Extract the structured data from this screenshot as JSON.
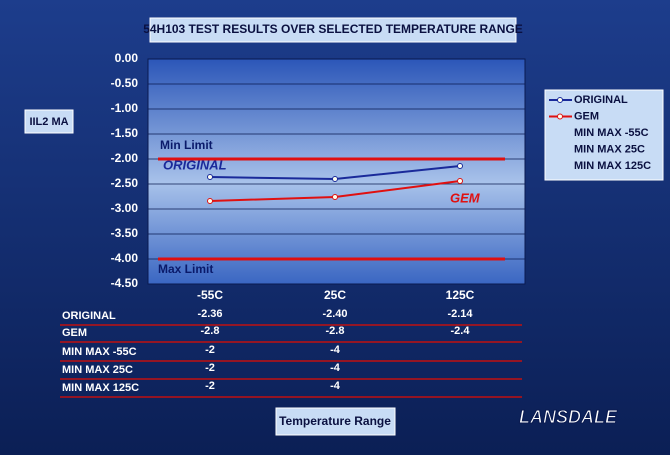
{
  "chart_data": {
    "type": "line",
    "title": "54H103 TEST RESULTS OVER SELECTED TEMPERATURE RANGE",
    "y_label": "IIL2 MA",
    "x_label": "Temperature Range",
    "categories": [
      "-55C",
      "25C",
      "125C"
    ],
    "series": [
      {
        "name": "ORIGINAL",
        "color": "#1a2a9a",
        "values": [
          -2.36,
          -2.4,
          -2.14
        ],
        "value_labels": [
          "-2.36",
          "-2.40",
          "-2.14"
        ],
        "kind": "line"
      },
      {
        "name": "GEM",
        "color": "#e01010",
        "values": [
          -2.84,
          -2.76,
          -2.44
        ],
        "value_labels": [
          "-2.8",
          "-2.8",
          "-2.4"
        ],
        "kind": "line"
      },
      {
        "name": "MIN MAX -55C",
        "color": "#e01010",
        "values": [
          -2,
          -4,
          null
        ],
        "kind": "limit"
      },
      {
        "name": "MIN MAX 25C",
        "color": "#e01010",
        "values": [
          -2,
          -4,
          null
        ],
        "kind": "limit"
      },
      {
        "name": "MIN MAX 125C",
        "color": "#e01010",
        "values": [
          -2,
          -4,
          null
        ],
        "kind": "limit"
      }
    ],
    "ylim": [
      -4.5,
      0
    ],
    "yticks": [
      {
        "value": 0,
        "label": "0.00"
      },
      {
        "value": -0.5,
        "label": "-0.50"
      },
      {
        "value": -1,
        "label": "-1.00"
      },
      {
        "value": -1.5,
        "label": "-1.50"
      },
      {
        "value": -2,
        "label": "-2.00"
      },
      {
        "value": -2.5,
        "label": "-2.50"
      },
      {
        "value": -3,
        "label": "-3.00"
      },
      {
        "value": -3.5,
        "label": "-3.50"
      },
      {
        "value": -4,
        "label": "-4.00"
      },
      {
        "value": -4.5,
        "label": "-4.50"
      }
    ],
    "grid": true,
    "legend": "right",
    "annotations": [
      "Min Limit",
      "Max Limit",
      "ORIGINAL",
      "GEM"
    ],
    "logo": "LANSDALE"
  }
}
